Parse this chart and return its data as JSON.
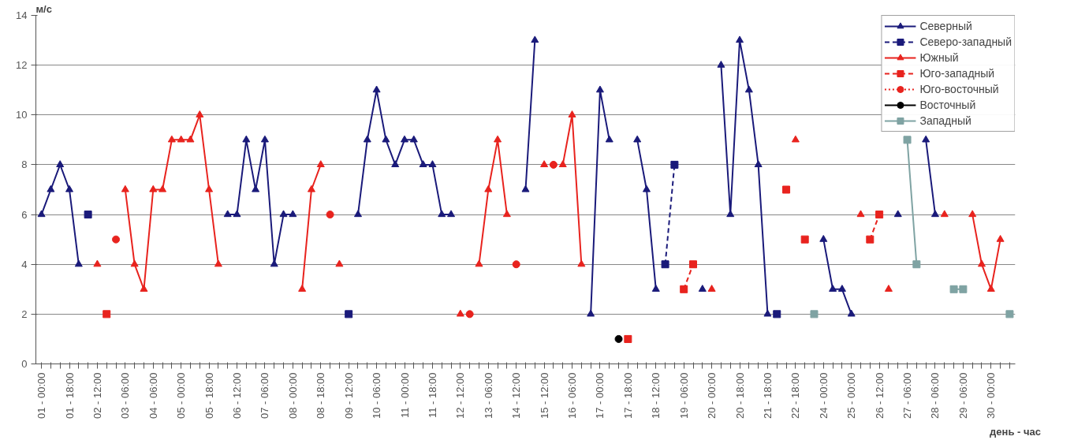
{
  "chart_data": {
    "type": "line",
    "xlabel": "день - час",
    "ylabel": "м/с",
    "categories": [
      "01 - 00:00",
      null,
      null,
      "01 - 18:00",
      null,
      null,
      "02 - 12:00",
      null,
      null,
      "03 - 06:00",
      null,
      null,
      "04 - 06:00",
      null,
      null,
      "05 - 00:00",
      null,
      null,
      "05 - 18:00",
      null,
      null,
      "06 - 12:00",
      null,
      null,
      "07 - 06:00",
      null,
      null,
      "08 - 00:00",
      null,
      null,
      "08 - 18:00",
      null,
      null,
      "09 - 12:00",
      null,
      null,
      "10 - 06:00",
      null,
      null,
      "11 - 00:00",
      null,
      null,
      "11 - 18:00",
      null,
      null,
      "12 - 12:00",
      null,
      null,
      "13 - 06:00",
      null,
      null,
      "14 - 12:00",
      null,
      null,
      "15 - 12:00",
      null,
      null,
      "16 - 06:00",
      null,
      null,
      "17 - 00:00",
      null,
      null,
      "17 - 18:00",
      null,
      null,
      "18 - 12:00",
      null,
      null,
      "19 - 06:00",
      null,
      null,
      "20 - 00:00",
      null,
      null,
      "20 - 18:00",
      null,
      null,
      "21 - 18:00",
      null,
      null,
      "22 - 18:00",
      null,
      null,
      "24 - 00:00",
      null,
      null,
      "25 - 00:00",
      null,
      null,
      "26 - 12:00",
      null,
      null,
      "27 - 06:00",
      null,
      null,
      "28 - 06:00",
      null,
      null,
      "29 - 06:00",
      null,
      null,
      "30 - 00:00",
      null,
      null
    ],
    "ylim": [
      0,
      14
    ],
    "yticks": [
      0,
      2,
      4,
      6,
      8,
      10,
      12,
      14
    ],
    "grid": "y",
    "legend": "top right",
    "series": [
      {
        "name": "Северный",
        "color": "#1a1a7a",
        "marker": "triangle",
        "line_style": "solid",
        "values": [
          6,
          7,
          8,
          7,
          4,
          null,
          null,
          null,
          null,
          null,
          null,
          null,
          null,
          null,
          null,
          null,
          null,
          null,
          null,
          null,
          6,
          6,
          9,
          7,
          9,
          4,
          6,
          6,
          null,
          null,
          null,
          null,
          null,
          null,
          6,
          9,
          11,
          9,
          8,
          9,
          9,
          8,
          8,
          6,
          6,
          null,
          null,
          null,
          null,
          null,
          null,
          null,
          7,
          13,
          null,
          null,
          null,
          null,
          null,
          2,
          11,
          9,
          null,
          null,
          9,
          7,
          3,
          null,
          null,
          null,
          null,
          3,
          null,
          12,
          6,
          13,
          11,
          8,
          2,
          null,
          null,
          null,
          null,
          null,
          5,
          3,
          3,
          2,
          null,
          null,
          null,
          null,
          6,
          null,
          null,
          9,
          6,
          null,
          null,
          null,
          null,
          null,
          null,
          null,
          null
        ]
      },
      {
        "name": "Северо-западный",
        "color": "#1a1a7a",
        "marker": "square",
        "line_style": "dashed",
        "values": [
          null,
          null,
          null,
          null,
          null,
          6,
          null,
          null,
          null,
          null,
          null,
          null,
          null,
          null,
          null,
          null,
          null,
          null,
          null,
          null,
          null,
          null,
          null,
          null,
          null,
          null,
          null,
          null,
          null,
          null,
          null,
          null,
          null,
          2,
          null,
          null,
          null,
          null,
          null,
          null,
          null,
          null,
          null,
          null,
          null,
          null,
          null,
          null,
          null,
          null,
          null,
          null,
          null,
          null,
          null,
          null,
          null,
          null,
          null,
          null,
          null,
          null,
          null,
          null,
          null,
          null,
          null,
          4,
          8,
          null,
          null,
          null,
          null,
          null,
          null,
          null,
          null,
          null,
          null,
          2,
          null,
          null,
          null,
          null,
          null,
          null,
          null,
          null,
          null,
          null,
          null,
          null,
          null,
          null,
          null,
          null,
          null,
          null,
          null,
          null,
          null,
          null,
          null,
          null,
          null
        ]
      },
      {
        "name": "Южный",
        "color": "#e8231e",
        "marker": "triangle",
        "line_style": "solid",
        "values": [
          null,
          null,
          null,
          null,
          null,
          null,
          4,
          null,
          null,
          7,
          4,
          3,
          7,
          7,
          9,
          9,
          9,
          10,
          7,
          4,
          null,
          null,
          null,
          null,
          null,
          null,
          null,
          null,
          3,
          7,
          8,
          null,
          4,
          null,
          null,
          null,
          null,
          null,
          null,
          null,
          null,
          null,
          null,
          null,
          null,
          2,
          null,
          4,
          7,
          9,
          6,
          null,
          null,
          null,
          8,
          null,
          8,
          10,
          4,
          null,
          null,
          null,
          null,
          null,
          null,
          null,
          null,
          null,
          null,
          null,
          null,
          null,
          3,
          null,
          null,
          null,
          null,
          null,
          null,
          null,
          null,
          9,
          null,
          null,
          null,
          null,
          null,
          null,
          6,
          null,
          null,
          3,
          null,
          null,
          null,
          null,
          null,
          6,
          null,
          null,
          6,
          4,
          3,
          5,
          null
        ]
      },
      {
        "name": "Юго-западный",
        "color": "#e8231e",
        "marker": "square",
        "line_style": "dashed",
        "values": [
          null,
          null,
          null,
          null,
          null,
          null,
          null,
          2,
          null,
          null,
          null,
          null,
          null,
          null,
          null,
          null,
          null,
          null,
          null,
          null,
          null,
          null,
          null,
          null,
          null,
          null,
          null,
          null,
          null,
          null,
          null,
          null,
          null,
          null,
          null,
          null,
          null,
          null,
          null,
          null,
          null,
          null,
          null,
          null,
          null,
          null,
          null,
          null,
          null,
          null,
          null,
          null,
          null,
          null,
          null,
          null,
          null,
          null,
          null,
          null,
          null,
          null,
          null,
          1,
          null,
          null,
          null,
          null,
          null,
          3,
          4,
          null,
          null,
          null,
          null,
          null,
          null,
          null,
          null,
          null,
          7,
          null,
          5,
          null,
          null,
          null,
          null,
          null,
          null,
          5,
          6,
          null,
          null,
          null,
          null,
          null,
          null,
          null,
          null,
          null,
          null,
          null,
          null,
          null,
          null
        ]
      },
      {
        "name": "Юго-восточный",
        "color": "#e8231e",
        "marker": "circle",
        "line_style": "dotted",
        "values": [
          null,
          null,
          null,
          null,
          null,
          null,
          null,
          null,
          5,
          null,
          null,
          null,
          null,
          null,
          null,
          null,
          null,
          null,
          null,
          null,
          null,
          null,
          null,
          null,
          null,
          null,
          null,
          null,
          null,
          null,
          null,
          6,
          null,
          null,
          null,
          null,
          null,
          null,
          null,
          null,
          null,
          null,
          null,
          null,
          null,
          null,
          2,
          null,
          null,
          null,
          null,
          4,
          null,
          null,
          null,
          8,
          null,
          null,
          null,
          null,
          null,
          null,
          null,
          null,
          null,
          null,
          null,
          null,
          null,
          null,
          null,
          null,
          null,
          null,
          null,
          null,
          null,
          null,
          null,
          null,
          null,
          null,
          null,
          null,
          null,
          null,
          null,
          null,
          null,
          null,
          null,
          null,
          null,
          null,
          null,
          null,
          null,
          null,
          null,
          null,
          null,
          null,
          null,
          null,
          null
        ]
      },
      {
        "name": "Восточный",
        "color": "#000000",
        "marker": "circle",
        "line_style": "solid",
        "values": [
          null,
          null,
          null,
          null,
          null,
          null,
          null,
          null,
          null,
          null,
          null,
          null,
          null,
          null,
          null,
          null,
          null,
          null,
          null,
          null,
          null,
          null,
          null,
          null,
          null,
          null,
          null,
          null,
          null,
          null,
          null,
          null,
          null,
          null,
          null,
          null,
          null,
          null,
          null,
          null,
          null,
          null,
          null,
          null,
          null,
          null,
          null,
          null,
          null,
          null,
          null,
          null,
          null,
          null,
          null,
          null,
          null,
          null,
          null,
          null,
          null,
          null,
          1,
          null,
          null,
          null,
          null,
          null,
          null,
          null,
          null,
          null,
          null,
          null,
          null,
          null,
          null,
          null,
          null,
          null,
          null,
          null,
          null,
          null,
          null,
          null,
          null,
          null,
          null,
          null,
          null,
          null,
          null,
          null,
          null,
          null,
          null,
          null,
          null,
          null,
          null,
          null,
          null,
          null,
          null
        ]
      },
      {
        "name": "Западный",
        "color": "#7fa3a3",
        "marker": "square",
        "line_style": "solid",
        "values": [
          null,
          null,
          null,
          null,
          null,
          null,
          null,
          null,
          null,
          null,
          null,
          null,
          null,
          null,
          null,
          null,
          null,
          null,
          null,
          null,
          null,
          null,
          null,
          null,
          null,
          null,
          null,
          null,
          null,
          null,
          null,
          null,
          null,
          null,
          null,
          null,
          null,
          null,
          null,
          null,
          null,
          null,
          null,
          null,
          null,
          null,
          null,
          null,
          null,
          null,
          null,
          null,
          null,
          null,
          null,
          null,
          null,
          null,
          null,
          null,
          null,
          null,
          null,
          null,
          null,
          null,
          null,
          null,
          null,
          null,
          null,
          null,
          null,
          null,
          null,
          null,
          null,
          null,
          null,
          null,
          null,
          null,
          null,
          2,
          null,
          null,
          null,
          null,
          null,
          null,
          null,
          null,
          null,
          9,
          4,
          null,
          null,
          null,
          3,
          3,
          null,
          null,
          null,
          null,
          2
        ]
      }
    ]
  }
}
